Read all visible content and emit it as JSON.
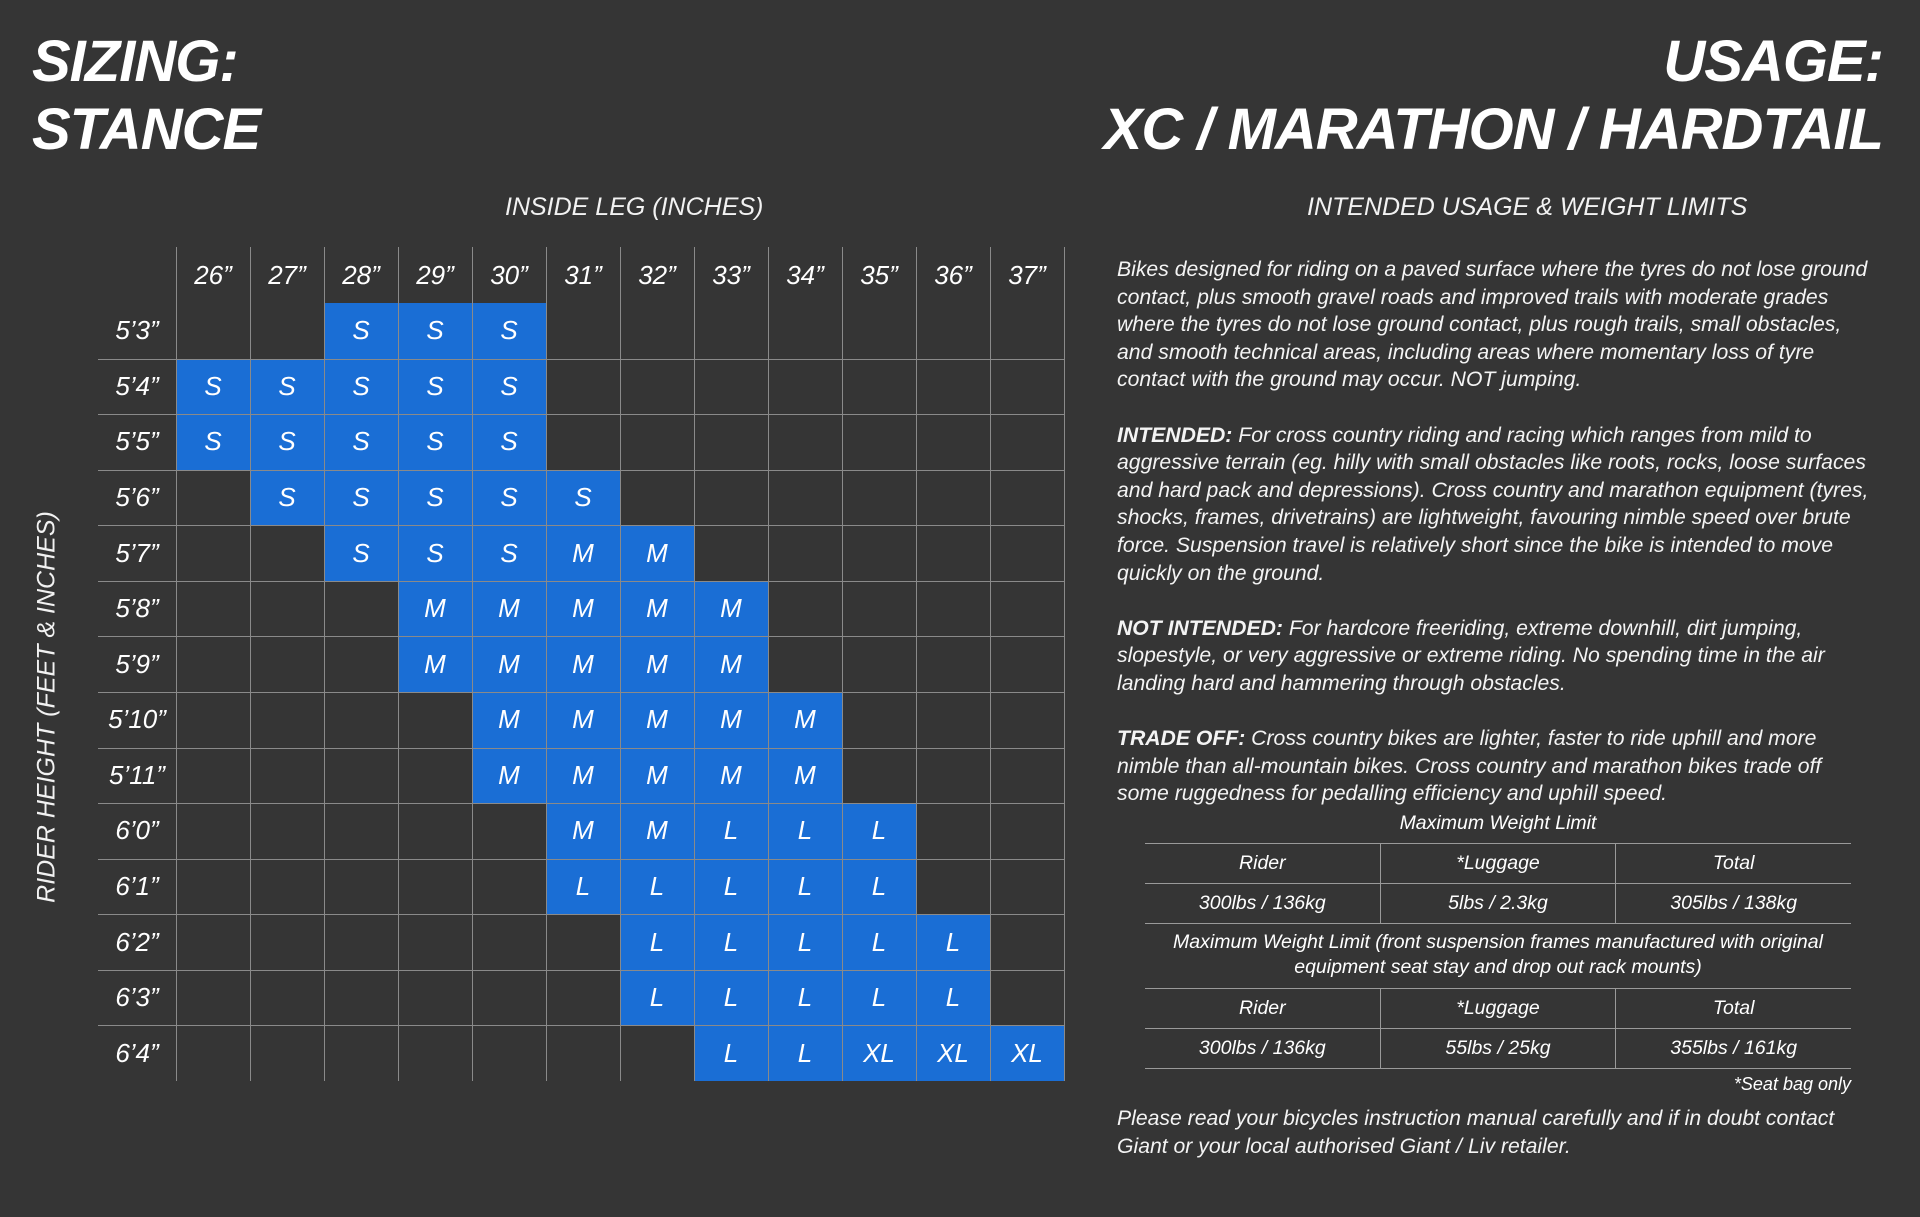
{
  "title_left": [
    "SIZING:",
    "STANCE"
  ],
  "title_right": [
    "USAGE:",
    "XC / MARATHON / HARDTAIL"
  ],
  "chart": {
    "x_label": "INSIDE LEG (INCHES)",
    "y_label": "RIDER HEIGHT (FEET & INCHES)",
    "columns": [
      "26”",
      "27”",
      "28”",
      "29”",
      "30”",
      "31”",
      "32”",
      "33”",
      "34”",
      "35”",
      "36”",
      "37”"
    ],
    "rows": [
      "5’3”",
      "5’4”",
      "5’5”",
      "5’6”",
      "5’7”",
      "5’8”",
      "5’9”",
      "5’10”",
      "5’11”",
      "6’0”",
      "6’1”",
      "6’2”",
      "6’3”",
      "6’4”"
    ],
    "cells": [
      [
        "",
        "",
        "S",
        "S",
        "S",
        "",
        "",
        "",
        "",
        "",
        "",
        ""
      ],
      [
        "S",
        "S",
        "S",
        "S",
        "S",
        "",
        "",
        "",
        "",
        "",
        "",
        ""
      ],
      [
        "S",
        "S",
        "S",
        "S",
        "S",
        "",
        "",
        "",
        "",
        "",
        "",
        ""
      ],
      [
        "",
        "S",
        "S",
        "S",
        "S",
        "S",
        "",
        "",
        "",
        "",
        "",
        ""
      ],
      [
        "",
        "",
        "S",
        "S",
        "S",
        "M",
        "M",
        "",
        "",
        "",
        "",
        ""
      ],
      [
        "",
        "",
        "",
        "M",
        "M",
        "M",
        "M",
        "M",
        "",
        "",
        "",
        ""
      ],
      [
        "",
        "",
        "",
        "M",
        "M",
        "M",
        "M",
        "M",
        "",
        "",
        "",
        ""
      ],
      [
        "",
        "",
        "",
        "",
        "M",
        "M",
        "M",
        "M",
        "M",
        "",
        "",
        ""
      ],
      [
        "",
        "",
        "",
        "",
        "M",
        "M",
        "M",
        "M",
        "M",
        "",
        "",
        ""
      ],
      [
        "",
        "",
        "",
        "",
        "",
        "M",
        "M",
        "L",
        "L",
        "L",
        "",
        ""
      ],
      [
        "",
        "",
        "",
        "",
        "",
        "L",
        "L",
        "L",
        "L",
        "L",
        "",
        ""
      ],
      [
        "",
        "",
        "",
        "",
        "",
        "",
        "L",
        "L",
        "L",
        "L",
        "L",
        ""
      ],
      [
        "",
        "",
        "",
        "",
        "",
        "",
        "L",
        "L",
        "L",
        "L",
        "L",
        ""
      ],
      [
        "",
        "",
        "",
        "",
        "",
        "",
        "",
        "L",
        "L",
        "XL",
        "XL",
        "XL"
      ]
    ],
    "fill_color": "#1a6ed5"
  },
  "usage": {
    "title": "INTENDED USAGE & WEIGHT LIMITS",
    "intro": "Bikes designed for  riding on a paved surface where the tyres do not lose ground contact, plus smooth gravel roads and improved trails with moderate grades where the tyres do not lose ground contact, plus rough trails, small obstacles, and smooth technical areas, including areas where momentary loss of tyre contact with the ground may occur. NOT jumping.",
    "intended_label": "INTENDED:",
    "intended_text": " For cross country riding and racing which ranges from mild to aggressive terrain (eg. hilly with small obstacles like roots, rocks, loose surfaces and hard pack and depressions). Cross country and marathon equipment (tyres, shocks, frames, drivetrains) are lightweight, favouring nimble speed over brute force. Suspension travel is relatively short since the bike is intended to move quickly on the ground.",
    "not_intended_label": "NOT INTENDED:",
    "not_intended_text": " For hardcore freeriding, extreme downhill, dirt jumping, slopestyle, or very aggressive or extreme riding. No spending time in the air landing hard and hammering through obstacles.",
    "trade_off_label": "TRADE OFF:",
    "trade_off_text": " Cross country bikes are lighter, faster to ride uphill and more nimble than all-mountain bikes. Cross country and marathon bikes trade off some ruggedness for pedalling efficiency and uphill speed."
  },
  "weights": {
    "title1": "Maximum Weight Limit",
    "headers1": [
      "Rider",
      "*Luggage",
      "Total"
    ],
    "values1": [
      "300lbs / 136kg",
      "5lbs / 2.3kg",
      "305lbs / 138kg"
    ],
    "title2": "Maximum Weight Limit (front suspension frames manufactured with original equipment seat stay and drop out rack mounts)",
    "headers2": [
      "Rider",
      "*Luggage",
      "Total"
    ],
    "values2": [
      "300lbs / 136kg",
      "55lbs / 25kg",
      "355lbs / 161kg"
    ],
    "note": "*Seat bag only"
  },
  "footer": "Please read your bicycles instruction manual carefully and if in doubt contact Giant or your local authorised Giant / Liv retailer."
}
